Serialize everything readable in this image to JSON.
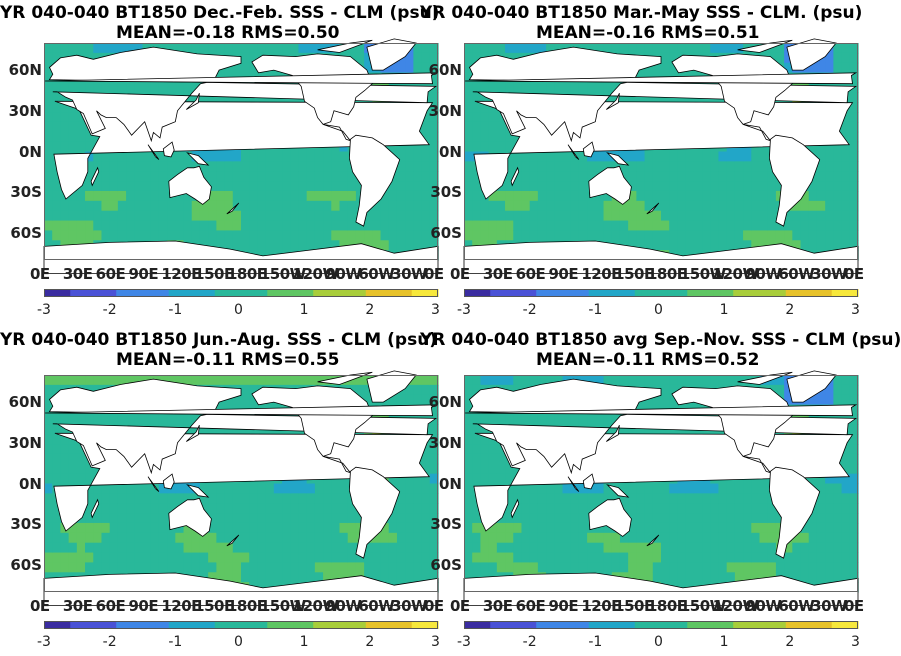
{
  "chart_data": [
    {
      "type": "heatmap",
      "title": "YR 040-040 BT1850  Dec.-Feb. SSS - CLM (psu)",
      "subtitle": "MEAN=-0.18   RMS=0.50",
      "lat_labels": [
        "60N",
        "30N",
        "0N",
        "30S",
        "60S"
      ],
      "lon_labels": [
        "0E",
        "30E",
        "60E",
        "90E",
        "120E",
        "150E",
        "180E",
        "150W",
        "120W",
        "90W",
        "60W",
        "30W",
        "0E"
      ],
      "colorbar_ticks": [
        "-3",
        "-2",
        "-1",
        "0",
        "1",
        "2",
        "3"
      ],
      "colorbar_range": [
        -3,
        3
      ],
      "mean": -0.18,
      "rms": 0.5
    },
    {
      "type": "heatmap",
      "title": "YR 040-040 BT1850 Mar.-May SSS - CLM. (psu)",
      "subtitle": "MEAN=-0.16   RMS=0.51",
      "lat_labels": [
        "60N",
        "30N",
        "0N",
        "30S",
        "60S"
      ],
      "lon_labels": [
        "0E",
        "30E",
        "60E",
        "90E",
        "120E",
        "150E",
        "180E",
        "150W",
        "120W",
        "90W",
        "60W",
        "30W",
        "0E"
      ],
      "colorbar_ticks": [
        "-3",
        "-2",
        "-1",
        "0",
        "1",
        "2",
        "3"
      ],
      "colorbar_range": [
        -3,
        3
      ],
      "mean": -0.16,
      "rms": 0.51
    },
    {
      "type": "heatmap",
      "title": "YR 040-040 BT1850 Jun.-Aug. SSS - CLM (psu)",
      "subtitle": "MEAN=-0.11   RMS=0.55",
      "lat_labels": [
        "60N",
        "30N",
        "0N",
        "30S",
        "60S"
      ],
      "lon_labels": [
        "0E",
        "30E",
        "60E",
        "90E",
        "120E",
        "150E",
        "180E",
        "150W",
        "120W",
        "90W",
        "60W",
        "30W",
        "0E"
      ],
      "colorbar_ticks": [
        "-3",
        "-2",
        "-1",
        "0",
        "1",
        "2",
        "3"
      ],
      "colorbar_range": [
        -3,
        3
      ],
      "mean": -0.11,
      "rms": 0.55
    },
    {
      "type": "heatmap",
      "title": "YR 040-040 BT1850 avg Sep.-Nov. SSS - CLM (psu)",
      "subtitle": "MEAN=-0.11   RMS=0.52",
      "lat_labels": [
        "60N",
        "30N",
        "0N",
        "30S",
        "60S"
      ],
      "lon_labels": [
        "0E",
        "30E",
        "60E",
        "90E",
        "120E",
        "150E",
        "180E",
        "150W",
        "120W",
        "90W",
        "60W",
        "30W",
        "0E"
      ],
      "colorbar_ticks": [
        "-3",
        "-2",
        "-1",
        "0",
        "1",
        "2",
        "3"
      ],
      "colorbar_range": [
        -3,
        3
      ],
      "mean": -0.11,
      "rms": 0.52
    }
  ],
  "colors": {
    "colormap": [
      "#3a2ca0",
      "#4a52d6",
      "#3f86e6",
      "#22a6c8",
      "#29b89a",
      "#5fc663",
      "#a8cd3a",
      "#e7c22a",
      "#f7e83b"
    ],
    "land": "#ffffff",
    "background_ocean": "#2aaea0"
  }
}
